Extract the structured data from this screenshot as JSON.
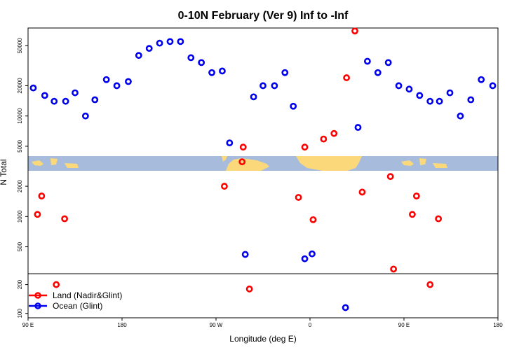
{
  "chart_data": {
    "type": "scatter",
    "title": "0-10N February (Ver 9)   Inf to -Inf",
    "xlabel": "Longitude (deg E)",
    "ylabel": "N Total",
    "x_ticks": [
      {
        "value": 0,
        "label": "90 E"
      },
      {
        "value": 90,
        "label": "180"
      },
      {
        "value": 180,
        "label": "90 W"
      },
      {
        "value": 270,
        "label": "0"
      },
      {
        "value": 360,
        "label": "90 E"
      },
      {
        "value": 450,
        "label": "180"
      }
    ],
    "upper_y_ticks": [
      {
        "value": 50000,
        "label": "50000"
      },
      {
        "value": 20000,
        "label": "20000"
      },
      {
        "value": 10000,
        "label": "10000"
      },
      {
        "value": 5000,
        "label": "5000"
      },
      {
        "value": 2000,
        "label": "2000"
      },
      {
        "value": 1000,
        "label": "1000"
      },
      {
        "value": 500,
        "label": "500"
      }
    ],
    "lower_y_ticks": [
      {
        "value": 200,
        "label": "200"
      },
      {
        "value": 100,
        "label": "100"
      }
    ],
    "xlim": [
      0,
      450
    ],
    "upper_ylim": [
      270,
      75000
    ],
    "lower_ylim": [
      90,
      260
    ],
    "grid": false,
    "legend_position": "bottom-left",
    "series": [
      {
        "name": "Land (Nadir&Glint)",
        "color": "#ff0000",
        "points": [
          [
            9,
            1050
          ],
          [
            13,
            1600
          ],
          [
            27,
            200
          ],
          [
            35,
            950
          ],
          [
            188,
            2000
          ],
          [
            205,
            3500
          ],
          [
            206,
            4900
          ],
          [
            212,
            180
          ],
          [
            259,
            1550
          ],
          [
            265,
            4900
          ],
          [
            273,
            930
          ],
          [
            283,
            5900
          ],
          [
            293,
            6700
          ],
          [
            305,
            24000
          ],
          [
            313,
            70000
          ],
          [
            320,
            1750
          ],
          [
            347,
            2500
          ],
          [
            350,
            300
          ],
          [
            368,
            1050
          ],
          [
            372,
            1600
          ],
          [
            385,
            200
          ],
          [
            393,
            950
          ]
        ]
      },
      {
        "name": "Ocean (Glint)",
        "color": "#0000ee",
        "points": [
          [
            5,
            19000
          ],
          [
            16,
            16000
          ],
          [
            25,
            14000
          ],
          [
            36,
            14000
          ],
          [
            45,
            17000
          ],
          [
            55,
            10000
          ],
          [
            64,
            14500
          ],
          [
            75,
            23000
          ],
          [
            85,
            20000
          ],
          [
            96,
            22000
          ],
          [
            106,
            40000
          ],
          [
            116,
            47000
          ],
          [
            126,
            53000
          ],
          [
            136,
            55000
          ],
          [
            146,
            55000
          ],
          [
            156,
            38000
          ],
          [
            166,
            34000
          ],
          [
            176,
            27000
          ],
          [
            186,
            28000
          ],
          [
            193,
            5400
          ],
          [
            208,
            420
          ],
          [
            216,
            15500
          ],
          [
            225,
            20000
          ],
          [
            236,
            20000
          ],
          [
            246,
            27000
          ],
          [
            254,
            12500
          ],
          [
            265,
            380
          ],
          [
            272,
            425
          ],
          [
            304,
            115
          ],
          [
            316,
            7700
          ],
          [
            325,
            35000
          ],
          [
            335,
            27000
          ],
          [
            345,
            34000
          ],
          [
            355,
            20000
          ],
          [
            365,
            18500
          ],
          [
            375,
            16000
          ],
          [
            385,
            14000
          ],
          [
            394,
            14000
          ],
          [
            404,
            17000
          ],
          [
            414,
            10000
          ],
          [
            424,
            14500
          ],
          [
            434,
            23000
          ],
          [
            445,
            20000
          ]
        ]
      }
    ]
  }
}
